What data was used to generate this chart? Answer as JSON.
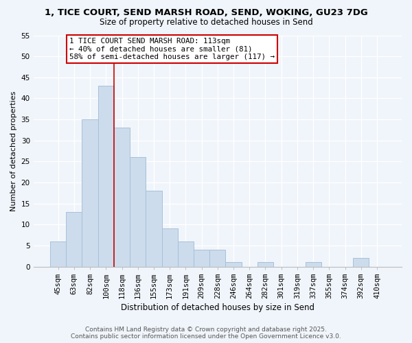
{
  "title": "1, TICE COURT, SEND MARSH ROAD, SEND, WOKING, GU23 7DG",
  "subtitle": "Size of property relative to detached houses in Send",
  "xlabel": "Distribution of detached houses by size in Send",
  "ylabel": "Number of detached properties",
  "bar_color": "#ccdcec",
  "bar_edgecolor": "#a8c0d8",
  "categories": [
    "45sqm",
    "63sqm",
    "82sqm",
    "100sqm",
    "118sqm",
    "136sqm",
    "155sqm",
    "173sqm",
    "191sqm",
    "209sqm",
    "228sqm",
    "246sqm",
    "264sqm",
    "282sqm",
    "301sqm",
    "319sqm",
    "337sqm",
    "355sqm",
    "374sqm",
    "392sqm",
    "410sqm"
  ],
  "values": [
    6,
    13,
    35,
    43,
    33,
    26,
    18,
    9,
    6,
    4,
    4,
    1,
    0,
    1,
    0,
    0,
    1,
    0,
    0,
    2,
    0
  ],
  "ylim": [
    0,
    55
  ],
  "yticks": [
    0,
    5,
    10,
    15,
    20,
    25,
    30,
    35,
    40,
    45,
    50,
    55
  ],
  "vline_x_idx": 3,
  "vline_color": "#cc0000",
  "annotation_text": "1 TICE COURT SEND MARSH ROAD: 113sqm\n← 40% of detached houses are smaller (81)\n58% of semi-detached houses are larger (117) →",
  "annotation_box_edgecolor": "#cc0000",
  "footer_line1": "Contains HM Land Registry data © Crown copyright and database right 2025.",
  "footer_line2": "Contains public sector information licensed under the Open Government Licence v3.0.",
  "bg_color": "#f0f5fb",
  "grid_color": "#ffffff",
  "title_fontsize": 9.5,
  "subtitle_fontsize": 8.5,
  "xlabel_fontsize": 8.5,
  "ylabel_fontsize": 8,
  "tick_fontsize": 7.5,
  "ann_fontsize": 7.8,
  "footer_fontsize": 6.5
}
